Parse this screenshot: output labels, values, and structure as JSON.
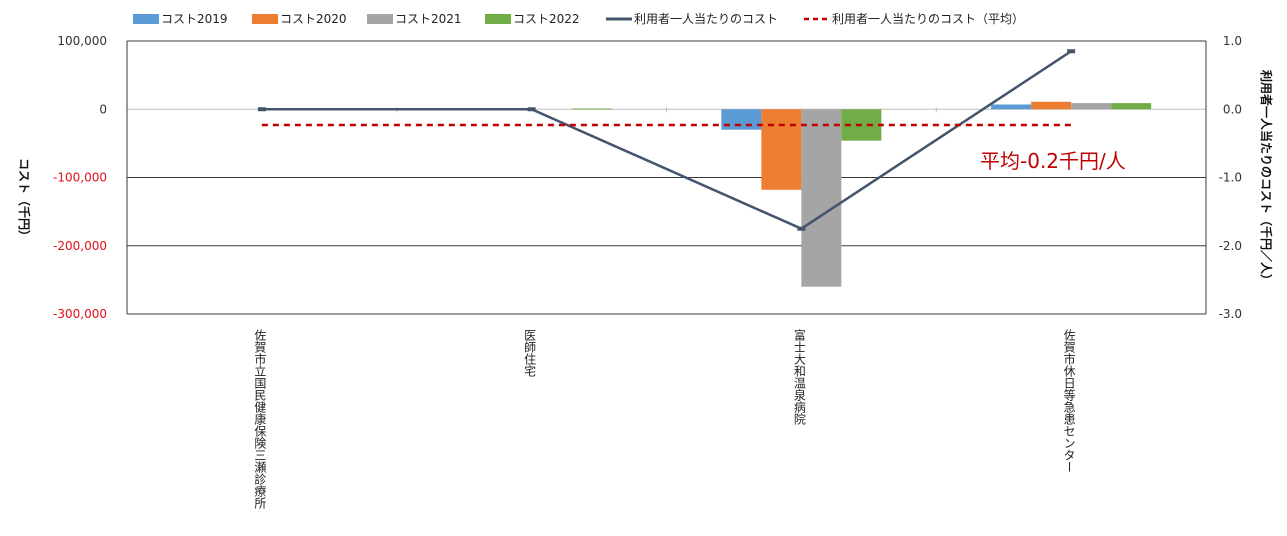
{
  "chart_data": {
    "type": "bar",
    "categories": [
      "佐賀市立国民健康保険三瀬診療所",
      "医師住宅",
      "富士大和温泉病院",
      "佐賀市休日等急患センター"
    ],
    "series": [
      {
        "name": "コスト2019",
        "kind": "bar",
        "axis": "left",
        "color": "#5b9bd5",
        "values": [
          0,
          0,
          -30000,
          7000
        ]
      },
      {
        "name": "コスト2020",
        "kind": "bar",
        "axis": "left",
        "color": "#ed7d31",
        "values": [
          0,
          0,
          -118000,
          11000
        ]
      },
      {
        "name": "コスト2021",
        "kind": "bar",
        "axis": "left",
        "color": "#a5a5a5",
        "values": [
          0,
          0,
          -260000,
          9000
        ]
      },
      {
        "name": "コスト2022",
        "kind": "bar",
        "axis": "left",
        "color": "#70ad47",
        "values": [
          0,
          1000,
          -46000,
          9000
        ]
      },
      {
        "name": "利用者一人当たりのコスト",
        "kind": "line",
        "axis": "right",
        "color": "#44546a",
        "values": [
          0.0,
          0.0,
          -1.75,
          0.85
        ]
      },
      {
        "name": "利用者一人当たりのコスト（平均）",
        "kind": "dashed-line",
        "axis": "right",
        "color": "#c00000",
        "values": [
          -0.23,
          -0.23,
          -0.23,
          -0.23
        ]
      }
    ],
    "ylabel": "コスト（千円）",
    "y2label": "利用者一人当たりのコスト（千円／人）",
    "ylim": [
      -300000,
      100000
    ],
    "y2lim": [
      -3.0,
      1.0
    ],
    "yticks": [
      "100,000",
      "0",
      "-100,000",
      "-200,000",
      "-300,000"
    ],
    "y2ticks": [
      "1.0",
      "0.0",
      "-1.0",
      "-2.0",
      "-3.0"
    ],
    "annotation": "平均-0.2千円/人",
    "grid": true,
    "legend_position": "top"
  }
}
